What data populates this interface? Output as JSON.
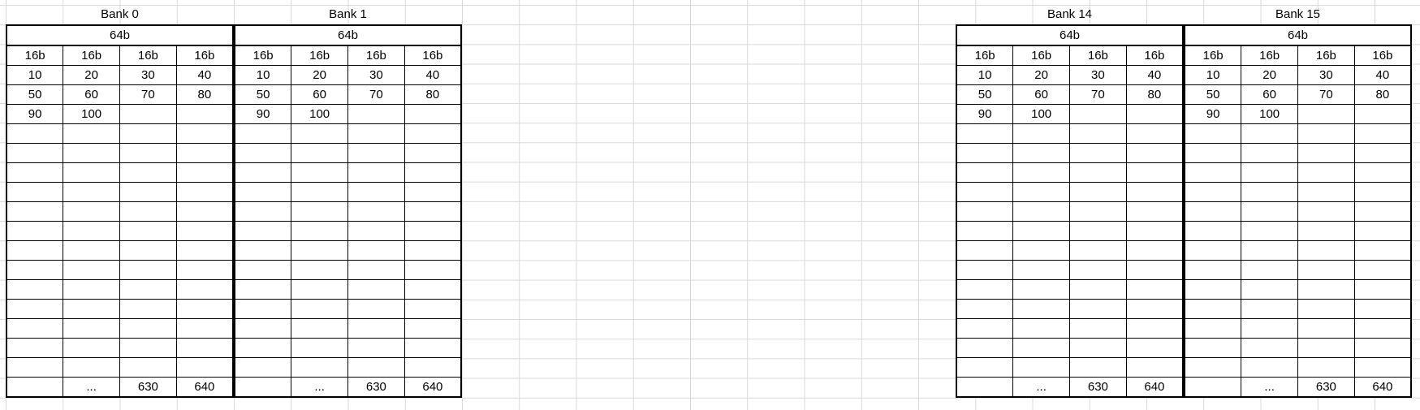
{
  "banks": [
    {
      "title": "Bank 0",
      "span_label": "64b",
      "col_labels": [
        "16b",
        "16b",
        "16b",
        "16b"
      ],
      "rows": [
        [
          "10",
          "20",
          "30",
          "40"
        ],
        [
          "50",
          "60",
          "70",
          "80"
        ],
        [
          "90",
          "100",
          "",
          ""
        ]
      ],
      "last_row": [
        "",
        "...",
        "630",
        "640"
      ]
    },
    {
      "title": "Bank 1",
      "span_label": "64b",
      "col_labels": [
        "16b",
        "16b",
        "16b",
        "16b"
      ],
      "rows": [
        [
          "10",
          "20",
          "30",
          "40"
        ],
        [
          "50",
          "60",
          "70",
          "80"
        ],
        [
          "90",
          "100",
          "",
          ""
        ]
      ],
      "last_row": [
        "",
        "...",
        "630",
        "640"
      ]
    },
    {
      "title": "Bank 14",
      "span_label": "64b",
      "col_labels": [
        "16b",
        "16b",
        "16b",
        "16b"
      ],
      "rows": [
        [
          "10",
          "20",
          "30",
          "40"
        ],
        [
          "50",
          "60",
          "70",
          "80"
        ],
        [
          "90",
          "100",
          "",
          ""
        ]
      ],
      "last_row": [
        "",
        "...",
        "630",
        "640"
      ]
    },
    {
      "title": "Bank 15",
      "span_label": "64b",
      "col_labels": [
        "16b",
        "16b",
        "16b",
        "16b"
      ],
      "rows": [
        [
          "10",
          "20",
          "30",
          "40"
        ],
        [
          "50",
          "60",
          "70",
          "80"
        ],
        [
          "90",
          "100",
          "",
          ""
        ]
      ],
      "last_row": [
        "",
        "...",
        "630",
        "640"
      ]
    }
  ]
}
